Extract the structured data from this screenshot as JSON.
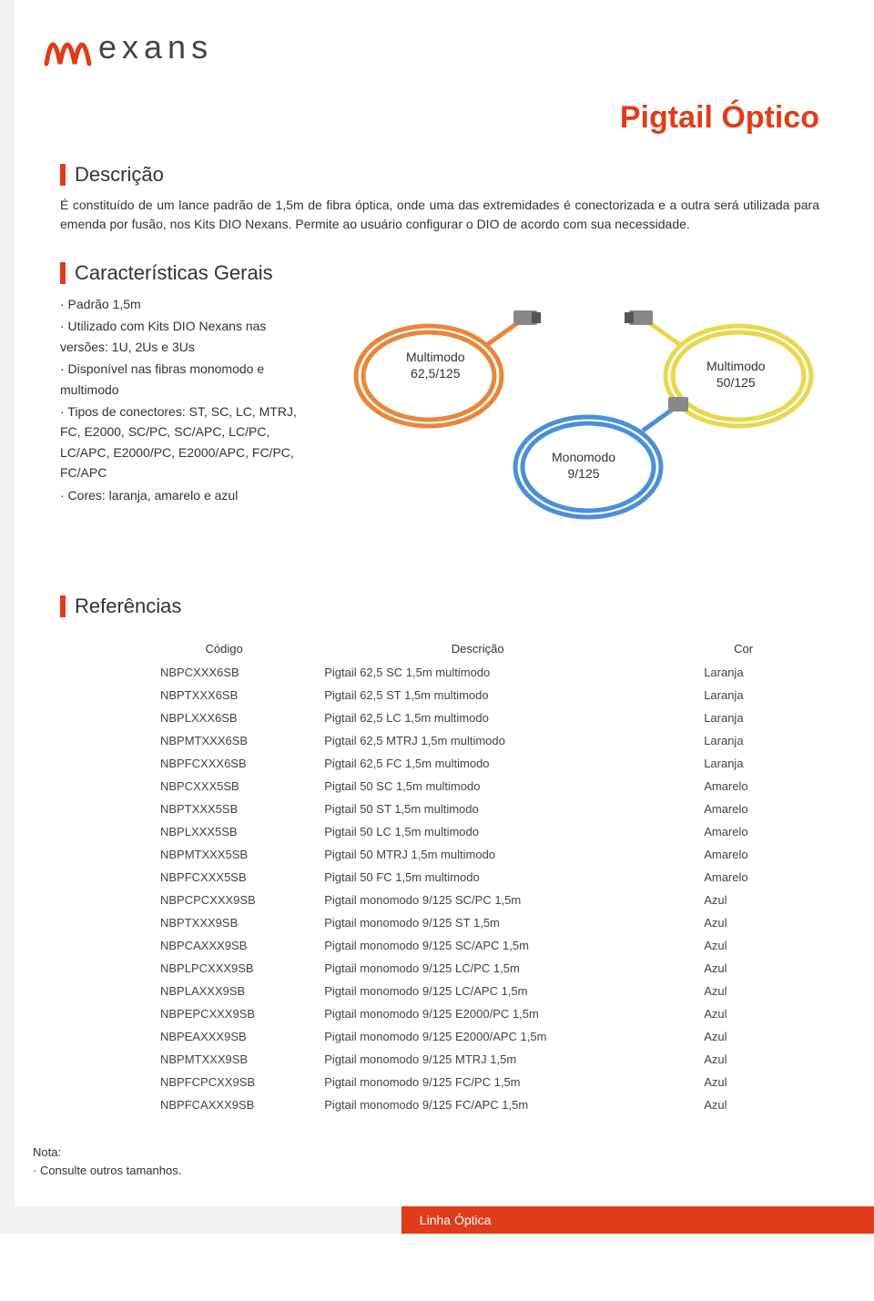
{
  "brand": "exans",
  "colors": {
    "accent": "#e03c1a",
    "text": "#333333",
    "footer_gray": "#f2f2f2",
    "orange_cable": "#e8863a",
    "yellow_cable": "#e8d84a",
    "blue_cable": "#4a90d8",
    "connector": "#888888"
  },
  "title": "Pigtail Óptico",
  "description": {
    "heading": "Descrição",
    "text": "É constituído de um lance padrão de 1,5m de fibra óptica, onde uma das extremidades é conectorizada e a outra será utilizada para emenda por fusão, nos Kits DIO Nexans. Permite ao usuário configurar o DIO de acordo com sua necessidade."
  },
  "characteristics": {
    "heading": "Características Gerais",
    "items": [
      "· Padrão 1,5m",
      "· Utilizado com Kits DIO Nexans nas versões: 1U, 2Us e 3Us",
      "· Disponível nas fibras monomodo e multimodo",
      "· Tipos de conectores: ST, SC, LC, MTRJ, FC, E2000, SC/PC, SC/APC, LC/PC, LC/APC, E2000/PC, E2000/APC, FC/PC, FC/APC",
      "· Cores: laranja, amarelo e azul"
    ],
    "labels": {
      "orange": "Multimodo\n62,5/125",
      "yellow": "Multimodo\n50/125",
      "blue": "Monomodo\n9/125"
    }
  },
  "references": {
    "heading": "Referências",
    "columns": [
      "Código",
      "Descrição",
      "Cor"
    ],
    "rows": [
      [
        "NBPCXXX6SB",
        "Pigtail 62,5 SC 1,5m multimodo",
        "Laranja"
      ],
      [
        "NBPTXXX6SB",
        "Pigtail 62,5 ST 1,5m multimodo",
        "Laranja"
      ],
      [
        "NBPLXXX6SB",
        "Pigtail 62,5 LC 1,5m multimodo",
        "Laranja"
      ],
      [
        "NBPMTXXX6SB",
        "Pigtail 62,5 MTRJ 1,5m multimodo",
        "Laranja"
      ],
      [
        "NBPFCXXX6SB",
        "Pigtail 62,5 FC 1,5m multimodo",
        "Laranja"
      ],
      [
        "NBPCXXX5SB",
        "Pigtail 50 SC 1,5m multimodo",
        "Amarelo"
      ],
      [
        "NBPTXXX5SB",
        "Pigtail 50 ST 1,5m multimodo",
        "Amarelo"
      ],
      [
        "NBPLXXX5SB",
        "Pigtail 50 LC 1,5m multimodo",
        "Amarelo"
      ],
      [
        "NBPMTXXX5SB",
        "Pigtail 50 MTRJ 1,5m multimodo",
        "Amarelo"
      ],
      [
        "NBPFCXXX5SB",
        "Pigtail 50 FC 1,5m multimodo",
        "Amarelo"
      ],
      [
        "NBPCPCXXX9SB",
        "Pigtail monomodo 9/125 SC/PC 1,5m",
        "Azul"
      ],
      [
        "NBPTXXX9SB",
        "Pigtail monomodo 9/125 ST 1,5m",
        "Azul"
      ],
      [
        "NBPCAXXX9SB",
        "Pigtail monomodo 9/125 SC/APC 1,5m",
        "Azul"
      ],
      [
        "NBPLPCXXX9SB",
        "Pigtail monomodo 9/125 LC/PC 1,5m",
        "Azul"
      ],
      [
        "NBPLAXXX9SB",
        "Pigtail monomodo 9/125 LC/APC 1,5m",
        "Azul"
      ],
      [
        "NBPEPCXXX9SB",
        "Pigtail monomodo 9/125 E2000/PC 1,5m",
        "Azul"
      ],
      [
        "NBPEAXXX9SB",
        "Pigtail monomodo 9/125 E2000/APC 1,5m",
        "Azul"
      ],
      [
        "NBPMTXXX9SB",
        "Pigtail monomodo 9/125 MTRJ 1,5m",
        "Azul"
      ],
      [
        "NBPFCPCXX9SB",
        "Pigtail monomodo 9/125 FC/PC 1,5m",
        "Azul"
      ],
      [
        "NBPFCAXXX9SB",
        "Pigtail monomodo 9/125 FC/APC 1,5m",
        "Azul"
      ]
    ]
  },
  "note": {
    "label": "Nota:",
    "text": "· Consulte outros tamanhos."
  },
  "footer": "Linha Óptica"
}
